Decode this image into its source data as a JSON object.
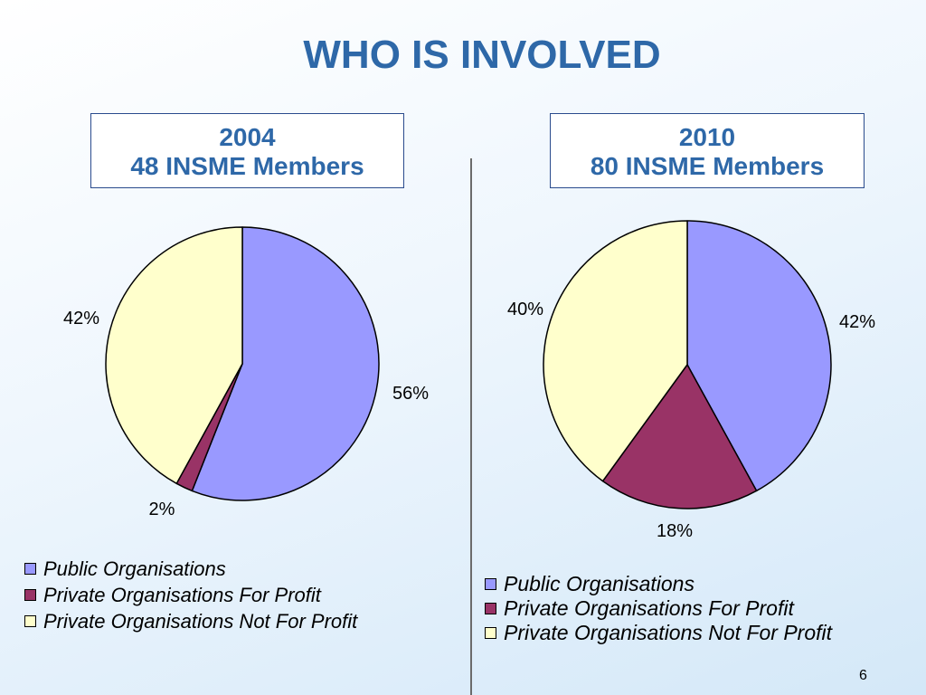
{
  "slide": {
    "title": "WHO IS INVOLVED",
    "page_number": "6"
  },
  "colors": {
    "title": "#2e68a8",
    "public": "#9999ff",
    "for_profit": "#993366",
    "not_for_profit": "#ffffcc"
  },
  "chart_data": [
    {
      "type": "pie",
      "title_line1": "2004",
      "title_line2": "48 INSME Members",
      "categories": [
        "Public Organisations",
        "Private Organisations For Profit",
        "Private Organisations Not For Profit"
      ],
      "values": [
        56,
        2,
        42
      ],
      "data_labels": [
        "56%",
        "2%",
        "42%"
      ],
      "legend": [
        "Public Organisations",
        "Private Organisations For Profit",
        "Private Organisations Not For Profit"
      ],
      "legend_position": "bottom"
    },
    {
      "type": "pie",
      "title_line1": "2010",
      "title_line2": "80 INSME Members",
      "categories": [
        "Public Organisations",
        "Private Organisations For Profit",
        "Private Organisations Not For Profit"
      ],
      "values": [
        42,
        18,
        40
      ],
      "data_labels": [
        "42%",
        "18%",
        "40%"
      ],
      "legend": [
        "Public Organisations",
        "Private Organisations For Profit",
        "Private Organisations Not For Profit"
      ],
      "legend_position": "bottom"
    }
  ]
}
